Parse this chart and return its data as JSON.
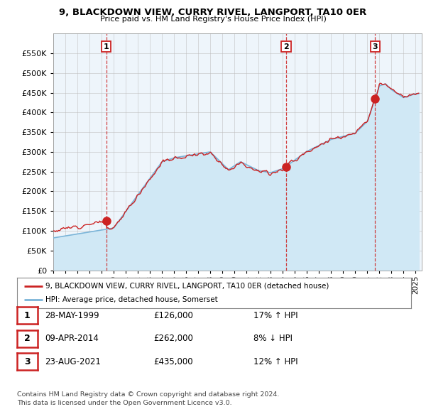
{
  "title": "9, BLACKDOWN VIEW, CURRY RIVEL, LANGPORT, TA10 0ER",
  "subtitle": "Price paid vs. HM Land Registry's House Price Index (HPI)",
  "ylim": [
    0,
    600000
  ],
  "yticks": [
    0,
    50000,
    100000,
    150000,
    200000,
    250000,
    300000,
    350000,
    400000,
    450000,
    500000,
    550000
  ],
  "xlim_start": 1995.0,
  "xlim_end": 2025.5,
  "sale_dates": [
    1999.38,
    2014.27,
    2021.64
  ],
  "sale_prices": [
    126000,
    262000,
    435000
  ],
  "sale_labels": [
    "1",
    "2",
    "3"
  ],
  "hpi_line_color": "#7ab4d8",
  "hpi_fill_color": "#d0e8f5",
  "price_line_color": "#cc2222",
  "sale_dot_color": "#cc2222",
  "vline_color": "#cc2222",
  "legend_line1": "9, BLACKDOWN VIEW, CURRY RIVEL, LANGPORT, TA10 0ER (detached house)",
  "legend_line2": "HPI: Average price, detached house, Somerset",
  "table_rows": [
    [
      "1",
      "28-MAY-1999",
      "£126,000",
      "17% ↑ HPI"
    ],
    [
      "2",
      "09-APR-2014",
      "£262,000",
      "8% ↓ HPI"
    ],
    [
      "3",
      "23-AUG-2021",
      "£435,000",
      "12% ↑ HPI"
    ]
  ],
  "footnote1": "Contains HM Land Registry data © Crown copyright and database right 2024.",
  "footnote2": "This data is licensed under the Open Government Licence v3.0.",
  "background_color": "#ffffff",
  "plot_bg_color": "#eef5fb",
  "grid_color": "#bbbbbb"
}
